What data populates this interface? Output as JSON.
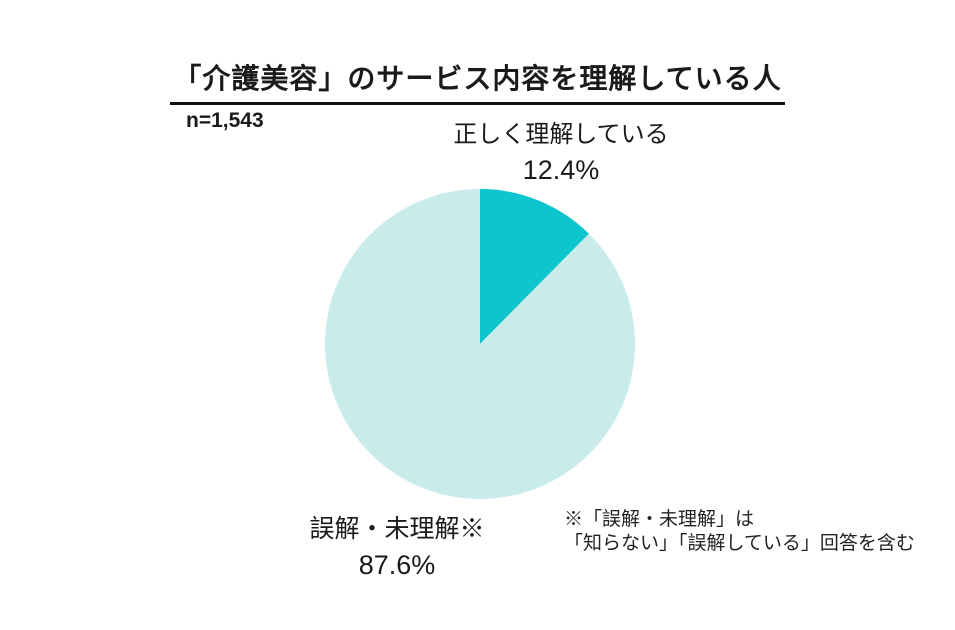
{
  "title": "「介護美容」のサービス内容を理解している人",
  "sample_size": "n=1,543",
  "chart_data": {
    "type": "pie",
    "title": "「介護美容」のサービス内容を理解している人",
    "sample_size": "n=1,543",
    "segments": [
      {
        "id": "correct",
        "label": "正しく理解している",
        "value": 12.4,
        "value_label": "12.4%",
        "color": "#0CC5CD"
      },
      {
        "id": "misunderstood",
        "label": "誤解・未理解※",
        "value": 87.6,
        "value_label": "87.6%",
        "color": "#C9ECEB"
      }
    ],
    "start_angle_deg": -90,
    "direction": "clockwise",
    "legend_position": "none"
  },
  "footnote": {
    "line1": "※「誤解・未理解」は",
    "line2": "「知らない」「誤解している」回答を含む"
  }
}
